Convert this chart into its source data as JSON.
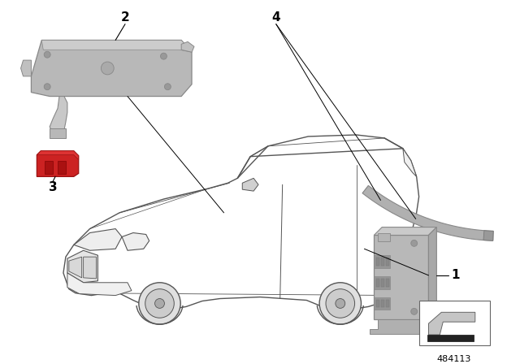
{
  "bg_color": "#ffffff",
  "car_color": "#555555",
  "car_lw": 1.0,
  "part_color": "#b8b8b8",
  "part_edge_color": "#888888",
  "red_color": "#cc2222",
  "label_color": "#000000",
  "diagram_number": "484113",
  "figsize": [
    6.4,
    4.48
  ],
  "dpi": 100,
  "label_fontsize": 11,
  "num_fontsize": 9
}
